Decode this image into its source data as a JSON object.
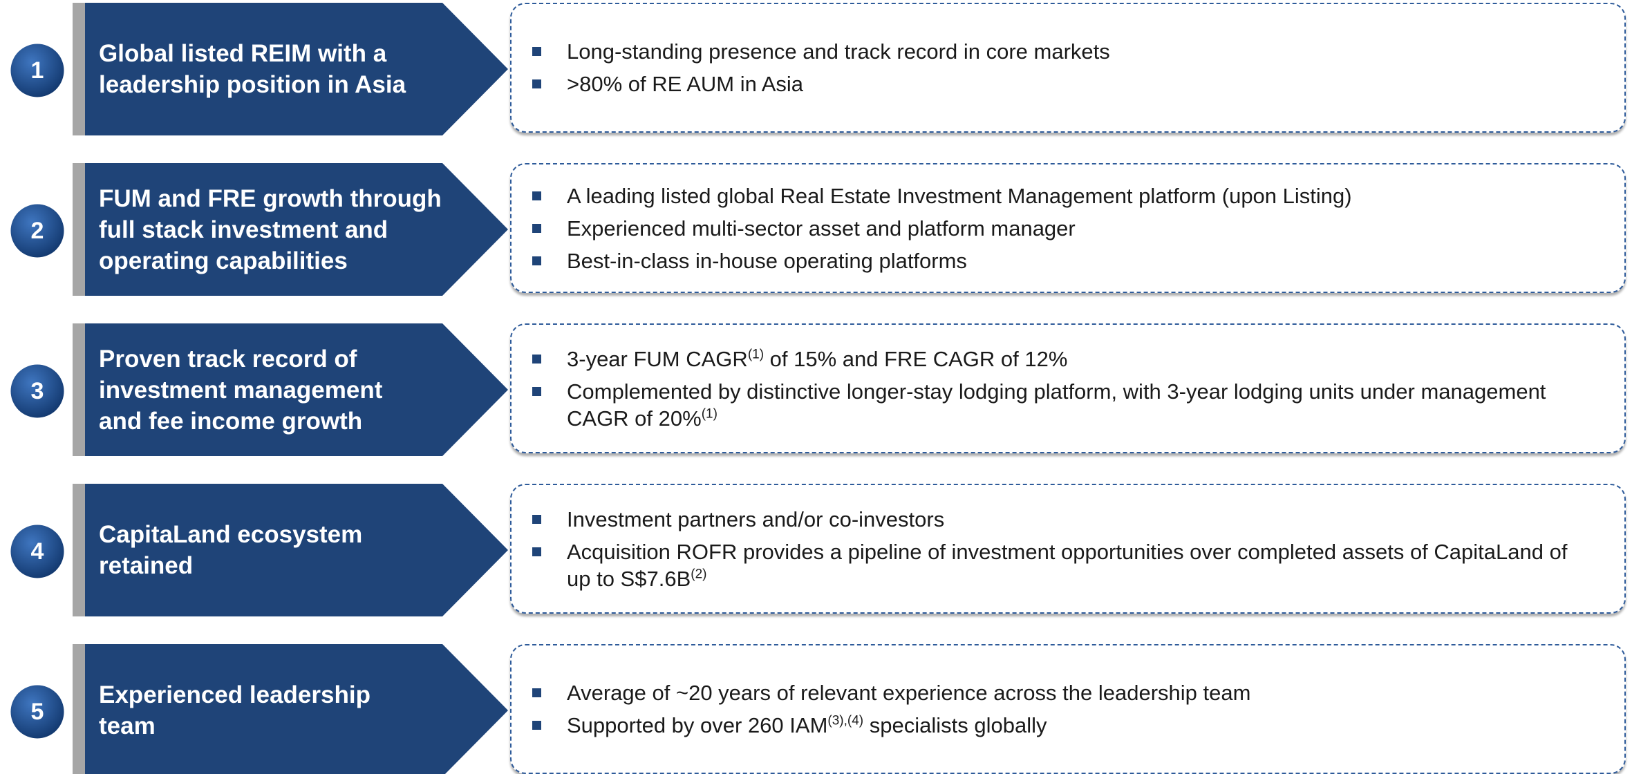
{
  "rows": [
    {
      "number": "1",
      "title_lines": [
        "Global listed REIM with a",
        "leadership position in Asia"
      ],
      "bullets": [
        [
          {
            "text": "Long-standing presence and track record in core markets"
          }
        ],
        [
          {
            "text": ">80% of RE AUM in Asia"
          }
        ]
      ]
    },
    {
      "number": "2",
      "title_lines": [
        "FUM and FRE growth through",
        "full stack investment and",
        "operating capabilities"
      ],
      "bullets": [
        [
          {
            "text": "A leading listed global Real Estate Investment Management platform (upon Listing)"
          }
        ],
        [
          {
            "text": "Experienced multi-sector asset and platform manager"
          }
        ],
        [
          {
            "text": "Best-in-class in-house operating platforms"
          }
        ]
      ]
    },
    {
      "number": "3",
      "title_lines": [
        "Proven track record of",
        "investment management",
        "and fee income growth"
      ],
      "bullets": [
        [
          {
            "text": "3-year FUM CAGR"
          },
          {
            "sup": "(1)"
          },
          {
            "text": " of 15% and FRE CAGR of 12%"
          }
        ],
        [
          {
            "text": "Complemented by distinctive longer-stay lodging platform, with 3-year lodging units under management CAGR of 20%"
          },
          {
            "sup": "(1)"
          }
        ]
      ]
    },
    {
      "number": "4",
      "title_lines": [
        "CapitaLand ecosystem",
        "retained"
      ],
      "bullets": [
        [
          {
            "text": "Investment partners and/or co-investors"
          }
        ],
        [
          {
            "text": "Acquisition ROFR provides a pipeline of investment opportunities over completed assets of CapitaLand of up to S$7.6B"
          },
          {
            "sup": "(2)"
          }
        ]
      ]
    },
    {
      "number": "5",
      "title_lines": [
        "Experienced leadership",
        "team"
      ],
      "bullets": [
        [
          {
            "text": "Average of ~20 years of relevant experience across the leadership team"
          }
        ],
        [
          {
            "text": "Supported by over 260 IAM"
          },
          {
            "sup": "(3),(4)"
          },
          {
            "text": " specialists globally"
          }
        ]
      ]
    }
  ]
}
